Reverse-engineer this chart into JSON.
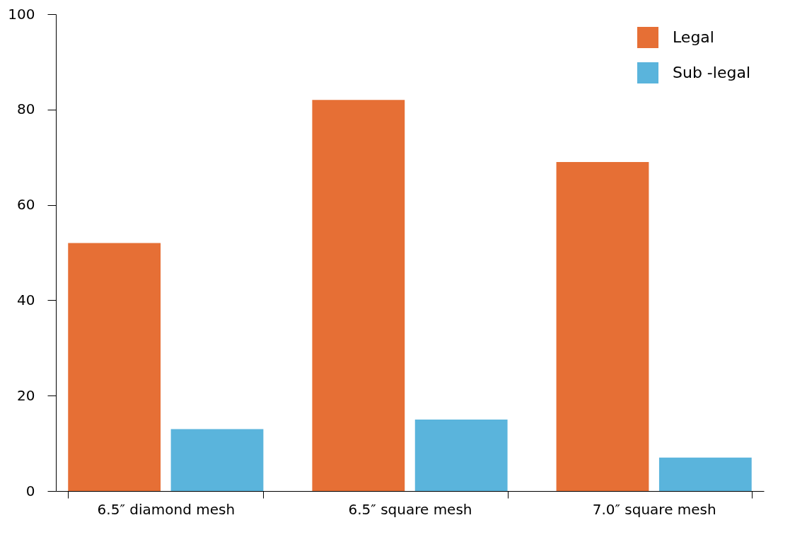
{
  "chart_data": {
    "type": "bar",
    "categories": [
      "6.5″  diamond mesh",
      "6.5″ square mesh",
      "7.0″ square mesh"
    ],
    "series": [
      {
        "name": "Legal",
        "color": "#e66f35",
        "values": [
          52,
          82,
          69
        ]
      },
      {
        "name": "Sub -legal",
        "color": "#5ab4dc",
        "values": [
          13,
          15,
          7
        ]
      }
    ],
    "ylim": [
      0,
      100
    ],
    "yticks": [
      0,
      20,
      40,
      60,
      80,
      100
    ],
    "grid": false,
    "legend": "top right"
  }
}
